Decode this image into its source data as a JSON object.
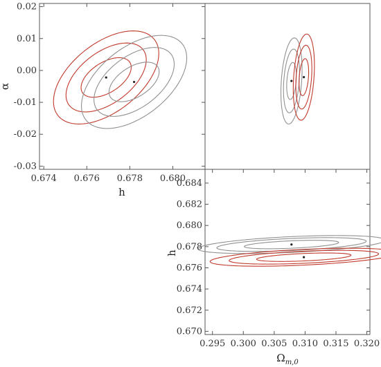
{
  "chart_data": [
    {
      "type": "contour",
      "panel": "top-left",
      "xlabel": "h",
      "ylabel": "α",
      "xlim": [
        0.6738,
        0.6815
      ],
      "ylim": [
        -0.031,
        0.021
      ],
      "x_ticks": [
        0.674,
        0.676,
        0.678,
        0.68
      ],
      "x_tick_labels": [
        "0.674",
        "0.676",
        "0.678",
        "0.680"
      ],
      "y_ticks": [
        -0.03,
        -0.02,
        -0.01,
        0.0,
        0.01,
        0.02
      ],
      "y_tick_labels": [
        "-0.03",
        "-0.02",
        "-0.01",
        "0.00",
        "0.01",
        "0.02"
      ],
      "series": [
        {
          "color": "#c0392b",
          "center": [
            0.6769,
            -0.0022
          ],
          "contours": [
            {
              "rx": 0.001,
              "ry": 0.0062,
              "rot": 0.6
            },
            {
              "rx": 0.0016,
              "ry": 0.0108,
              "rot": 0.6
            },
            {
              "rx": 0.0021,
              "ry": 0.0146,
              "rot": 0.6
            }
          ]
        },
        {
          "color": "#909090",
          "center": [
            0.6782,
            -0.0036
          ],
          "contours": [
            {
              "rx": 0.001,
              "ry": 0.0062,
              "rot": 0.6
            },
            {
              "rx": 0.0016,
              "ry": 0.0108,
              "rot": 0.6
            },
            {
              "rx": 0.0021,
              "ry": 0.0146,
              "rot": 0.6
            }
          ]
        }
      ]
    },
    {
      "type": "contour",
      "panel": "top-right",
      "xlim": [
        0.2938,
        0.3205
      ],
      "ylim": [
        -0.031,
        0.021
      ],
      "x_ticks": [],
      "y_ticks": [],
      "series": [
        {
          "color": "#909090",
          "center": [
            0.3078,
            -0.0033
          ],
          "contours": [
            {
              "rx": 0.00075,
              "ry": 0.0058,
              "rot": 0.28
            },
            {
              "rx": 0.00125,
              "ry": 0.01,
              "rot": 0.28
            },
            {
              "rx": 0.00165,
              "ry": 0.0135,
              "rot": 0.28
            }
          ]
        },
        {
          "color": "#c0392b",
          "center": [
            0.3098,
            -0.0021
          ],
          "contours": [
            {
              "rx": 0.00075,
              "ry": 0.0058,
              "rot": 0.28
            },
            {
              "rx": 0.00125,
              "ry": 0.01,
              "rot": 0.28
            },
            {
              "rx": 0.00165,
              "ry": 0.0135,
              "rot": 0.28
            }
          ]
        }
      ]
    },
    {
      "type": "contour",
      "panel": "bottom-right",
      "xlabel": "Ω",
      "xlabel_sub": "m,0",
      "ylabel": "h",
      "xlim": [
        0.2938,
        0.3205
      ],
      "ylim": [
        0.6697,
        0.6853
      ],
      "x_ticks": [
        0.295,
        0.3,
        0.305,
        0.31,
        0.315,
        0.32
      ],
      "x_tick_labels": [
        "0.295",
        "0.300",
        "0.305",
        "0.310",
        "0.315",
        "0.320"
      ],
      "y_ticks": [
        0.67,
        0.672,
        0.674,
        0.676,
        0.678,
        0.68,
        0.682,
        0.684
      ],
      "y_tick_labels": [
        "0.670",
        "0.672",
        "0.674",
        "0.676",
        "0.678",
        "0.680",
        "0.682",
        "0.684"
      ],
      "series": [
        {
          "color": "#909090",
          "center": [
            0.3078,
            0.6782
          ],
          "contours": [
            {
              "rx": 0.0067,
              "ry": 0.0004,
              "rot": 0.55
            },
            {
              "rx": 0.0106,
              "ry": 0.00065,
              "rot": 0.55
            },
            {
              "rx": 0.0133,
              "ry": 0.00085,
              "rot": 0.55
            }
          ]
        },
        {
          "color": "#c0392b",
          "center": [
            0.3098,
            0.677
          ],
          "contours": [
            {
              "rx": 0.0067,
              "ry": 0.0004,
              "rot": 0.55
            },
            {
              "rx": 0.0106,
              "ry": 0.00065,
              "rot": 0.55
            },
            {
              "rx": 0.0133,
              "ry": 0.00085,
              "rot": 0.55
            }
          ]
        }
      ]
    }
  ]
}
